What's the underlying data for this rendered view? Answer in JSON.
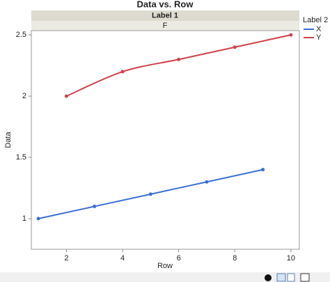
{
  "chart_data": {
    "type": "line",
    "title": "Data vs. Row",
    "panel_title": "Label 1",
    "panel_label": "F",
    "x_label": "Row",
    "y_label": "Data",
    "legend_title": "Label 2",
    "xlim": [
      0.75,
      10.3
    ],
    "xticks": [
      2,
      4,
      6,
      8,
      10
    ],
    "ylim": [
      0.75,
      2.535
    ],
    "yticks": [
      1.0,
      1.5,
      2.0,
      2.5
    ],
    "series": [
      {
        "name": "X",
        "color": "#3a6fd8",
        "smooth": false,
        "x": [
          1,
          3,
          5,
          7,
          9
        ],
        "values": [
          1.0,
          1.1,
          1.2,
          1.3,
          1.4
        ]
      },
      {
        "name": "Y",
        "color": "#d0414a",
        "smooth": true,
        "x": [
          2,
          4,
          6,
          8,
          10
        ],
        "values": [
          2.0,
          2.2,
          2.3,
          2.4,
          2.5
        ]
      }
    ]
  }
}
